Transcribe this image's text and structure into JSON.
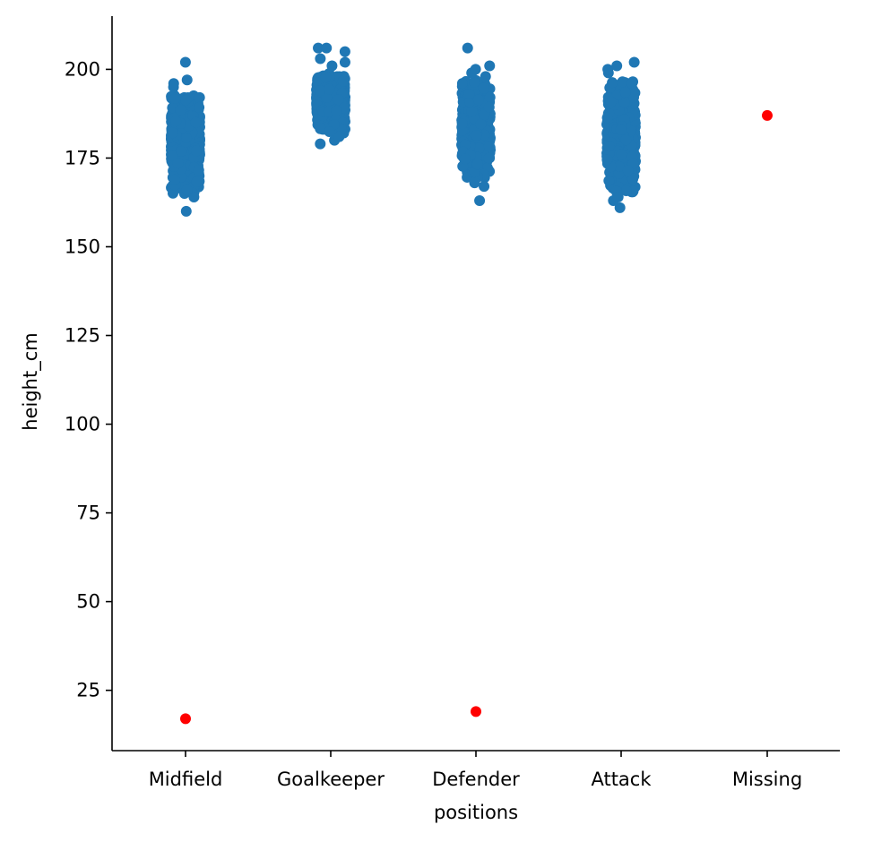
{
  "chart_data": {
    "type": "scatter",
    "subtype": "strip",
    "xlabel": "positions",
    "ylabel": "height_cm",
    "categories": [
      "Midfield",
      "Goalkeeper",
      "Defender",
      "Attack",
      "Missing"
    ],
    "yticks": [
      25,
      50,
      75,
      100,
      125,
      150,
      175,
      200
    ],
    "ylim": [
      8,
      215
    ],
    "grid": false,
    "colors": {
      "main": "#1f77b4",
      "highlight": "#ff0000",
      "axis": "#000000"
    },
    "series": [
      {
        "color": "#1f77b4",
        "groups": [
          {
            "category": "Midfield",
            "core_range": [
              165,
              193
            ],
            "extremes": [
              160,
              164,
              166,
              195,
              196,
              197,
              202
            ]
          },
          {
            "category": "Goalkeeper",
            "core_range": [
              182,
              199
            ],
            "extremes": [
              179,
              180,
              181,
              201,
              202,
              203,
              205,
              206,
              206
            ]
          },
          {
            "category": "Defender",
            "core_range": [
              169,
              197
            ],
            "extremes": [
              163,
              167,
              168,
              198,
              199,
              200,
              201,
              206
            ]
          },
          {
            "category": "Attack",
            "core_range": [
              165,
              197
            ],
            "extremes": [
              161,
              163,
              164,
              199,
              200,
              201,
              202
            ]
          }
        ]
      },
      {
        "color": "#ff0000",
        "points": [
          {
            "category": "Midfield",
            "y": 17
          },
          {
            "category": "Defender",
            "y": 19
          },
          {
            "category": "Missing",
            "y": 187
          }
        ]
      }
    ]
  }
}
